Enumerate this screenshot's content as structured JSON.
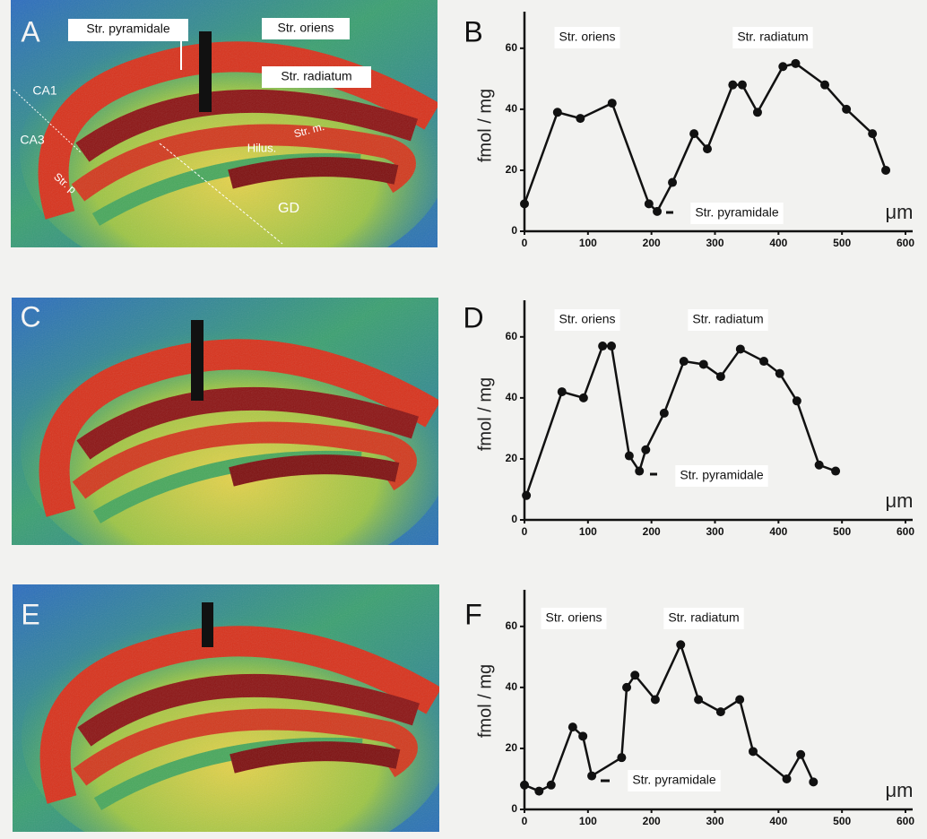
{
  "images": [
    {
      "letter": "A",
      "labels": [
        "Str. pyramidale",
        "Str. oriens",
        "Str. radiatum",
        "CA1",
        "CA3",
        "Str. m.",
        "Hilus.",
        "Str. p",
        "GD"
      ]
    },
    {
      "letter": "C"
    },
    {
      "letter": "E"
    }
  ],
  "chart_data": [
    {
      "type": "line",
      "panel": "B",
      "ylabel": "fmol / mg",
      "xunit": "μm",
      "annotations": [
        "Str. oriens",
        "Str. radiatum",
        "Str. pyramidale"
      ],
      "x": [
        0,
        52,
        88,
        138,
        196,
        209,
        233,
        267,
        288,
        328,
        343,
        367,
        407,
        427,
        473,
        507,
        548,
        569
      ],
      "values": [
        9,
        39,
        37,
        42,
        9,
        6.5,
        16,
        32,
        27,
        48,
        48,
        39,
        54,
        55,
        48,
        40,
        32,
        20
      ],
      "color": "#111111",
      "xlim": [
        0,
        600
      ],
      "ylim": [
        0,
        72
      ],
      "xticks": [
        0,
        100,
        200,
        300,
        400,
        500,
        600
      ],
      "yticks": [
        0,
        20,
        40,
        60
      ]
    },
    {
      "type": "line",
      "panel": "D",
      "ylabel": "fmol / mg",
      "xunit": "μm",
      "annotations": [
        "Str. oriens",
        "Str. radiatum",
        "Str. pyramidale"
      ],
      "x": [
        3,
        59,
        93,
        123,
        137,
        165,
        181,
        191,
        220,
        251,
        282,
        309,
        340,
        377,
        402,
        429,
        464,
        490
      ],
      "values": [
        8,
        42,
        40,
        57,
        57,
        21,
        16,
        23,
        35,
        52,
        51,
        47,
        56,
        52,
        48,
        39,
        18,
        16
      ],
      "color": "#111111",
      "xlim": [
        0,
        600
      ],
      "ylim": [
        0,
        72
      ],
      "xticks": [
        0,
        100,
        200,
        300,
        400,
        500,
        600
      ],
      "yticks": [
        0,
        20,
        40,
        60
      ]
    },
    {
      "type": "line",
      "panel": "F",
      "ylabel": "fmol / mg",
      "xunit": "μm",
      "annotations": [
        "Str. oriens",
        "Str. radiatum",
        "Str. pyramidale"
      ],
      "x": [
        0,
        23,
        42,
        76,
        92,
        106,
        153,
        161,
        174,
        206,
        246,
        274,
        309,
        339,
        360,
        413,
        435,
        455
      ],
      "values": [
        8,
        6,
        8,
        27,
        24,
        11,
        17,
        40,
        44,
        36,
        54,
        36,
        32,
        36,
        19,
        10,
        18,
        9
      ],
      "color": "#111111",
      "xlim": [
        0,
        600
      ],
      "ylim": [
        0,
        72
      ],
      "xticks": [
        0,
        100,
        200,
        300,
        400,
        500,
        600
      ],
      "yticks": [
        0,
        20,
        40,
        60
      ]
    }
  ]
}
